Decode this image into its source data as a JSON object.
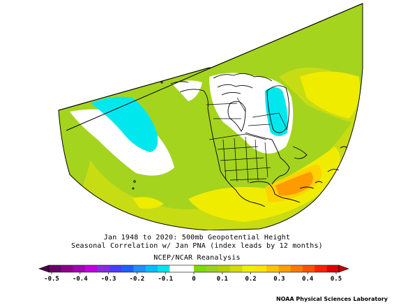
{
  "titles": {
    "line1": "Jan 1948 to 2020: 500mb Geopotential Height",
    "line2": "Seasonal Correlation w/ Jan PNA (index leads by 12 months)",
    "line3": "NCEP/NCAR Reanalysis"
  },
  "colorbar": {
    "ticks": [
      "-0.5",
      "-0.4",
      "-0.3",
      "-0.2",
      "-0.1",
      "0",
      "0.1",
      "0.2",
      "0.3",
      "0.4",
      "0.5"
    ],
    "colors": [
      "#6a006a",
      "#8b008b",
      "#a400b8",
      "#c000e0",
      "#8a2be2",
      "#4b3cff",
      "#1e60ff",
      "#1e90ff",
      "#00bfff",
      "#00e5ee",
      "#ffffff",
      "#ffffff",
      "#7cdc00",
      "#9ad21e",
      "#b8d200",
      "#d2dc00",
      "#f0f000",
      "#ffe400",
      "#ffc400",
      "#ffa000",
      "#ff7a00",
      "#ff5000",
      "#ff2000",
      "#e00000"
    ]
  },
  "map": {
    "fill_colors": {
      "base": "#a4d41e",
      "light_green": "#c8dc14",
      "yellow": "#f0ec00",
      "gold": "#ffd200",
      "orange": "#ff9a00",
      "cyan": "#00e8ee",
      "white": "#ffffff"
    }
  },
  "footer": "NOAA Physical Sciences Laboratory"
}
